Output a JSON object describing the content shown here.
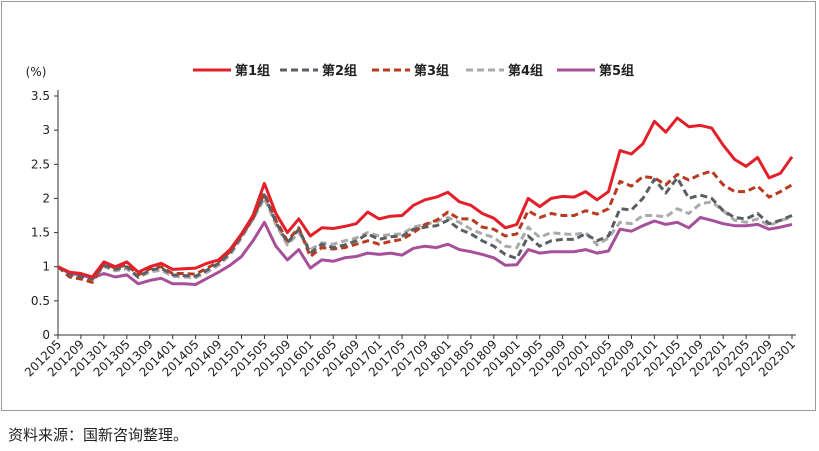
{
  "chart_data": {
    "type": "line",
    "ylabel": "(%)",
    "ylim": [
      0,
      3.5
    ],
    "yticks": [
      "0",
      "0.5",
      "1",
      "1.5",
      "2",
      "2.5",
      "3",
      "3.5"
    ],
    "x_tick_labels": [
      "201205",
      "201209",
      "201301",
      "201305",
      "201309",
      "201401",
      "201405",
      "201409",
      "201501",
      "201505",
      "201509",
      "201601",
      "201605",
      "201609",
      "201701",
      "201705",
      "201709",
      "201801",
      "201805",
      "201809",
      "201901",
      "201905",
      "201909",
      "202001",
      "202005",
      "202009",
      "202101",
      "202105",
      "202109",
      "202201",
      "202205",
      "202209",
      "202301"
    ],
    "series": [
      {
        "name": "第1组",
        "color": "#e3202a",
        "dash": "solid",
        "values": [
          1.0,
          0.92,
          0.9,
          0.85,
          1.07,
          1.0,
          1.07,
          0.92,
          1.0,
          1.05,
          0.96,
          0.97,
          0.98,
          1.05,
          1.1,
          1.25,
          1.48,
          1.75,
          2.22,
          1.78,
          1.5,
          1.7,
          1.45,
          1.57,
          1.56,
          1.59,
          1.63,
          1.8,
          1.7,
          1.74,
          1.75,
          1.9,
          1.98,
          2.02,
          2.09,
          1.95,
          1.9,
          1.78,
          1.71,
          1.57,
          1.62,
          2.0,
          1.88,
          2.0,
          2.03,
          2.02,
          2.1,
          1.98,
          2.1,
          2.7,
          2.65,
          2.8,
          3.13,
          2.97,
          3.18,
          3.05,
          3.07,
          3.03,
          2.78,
          2.57,
          2.47,
          2.6,
          2.3,
          2.37,
          2.61
        ]
      },
      {
        "name": "第2组",
        "color": "#5a5f66",
        "dash": "7,4",
        "values": [
          1.0,
          0.88,
          0.86,
          0.82,
          1.02,
          0.96,
          1.0,
          0.85,
          0.95,
          0.98,
          0.88,
          0.87,
          0.86,
          0.95,
          1.05,
          1.2,
          1.45,
          1.72,
          2.05,
          1.65,
          1.35,
          1.55,
          1.2,
          1.33,
          1.28,
          1.32,
          1.38,
          1.48,
          1.4,
          1.44,
          1.45,
          1.55,
          1.58,
          1.6,
          1.68,
          1.55,
          1.48,
          1.38,
          1.3,
          1.18,
          1.12,
          1.45,
          1.3,
          1.38,
          1.4,
          1.4,
          1.48,
          1.38,
          1.45,
          1.85,
          1.83,
          2.0,
          2.28,
          2.08,
          2.3,
          2.0,
          2.05,
          2.0,
          1.82,
          1.72,
          1.7,
          1.78,
          1.63,
          1.68,
          1.75
        ]
      },
      {
        "name": "第3组",
        "color": "#b93a1e",
        "dash": "7,4",
        "values": [
          1.0,
          0.85,
          0.82,
          0.77,
          1.05,
          0.98,
          1.03,
          0.88,
          0.97,
          1.0,
          0.9,
          0.9,
          0.89,
          0.98,
          1.07,
          1.22,
          1.46,
          1.7,
          2.08,
          1.68,
          1.38,
          1.57,
          1.15,
          1.28,
          1.26,
          1.28,
          1.33,
          1.38,
          1.33,
          1.37,
          1.4,
          1.5,
          1.62,
          1.68,
          1.8,
          1.7,
          1.7,
          1.58,
          1.55,
          1.45,
          1.48,
          1.82,
          1.72,
          1.78,
          1.75,
          1.75,
          1.82,
          1.77,
          1.85,
          2.25,
          2.18,
          2.32,
          2.3,
          2.2,
          2.35,
          2.27,
          2.35,
          2.4,
          2.2,
          2.1,
          2.1,
          2.18,
          2.02,
          2.1,
          2.2
        ]
      },
      {
        "name": "第4组",
        "color": "#ababab",
        "dash": "7,4",
        "values": [
          1.0,
          0.86,
          0.84,
          0.8,
          1.0,
          0.94,
          0.97,
          0.84,
          0.92,
          0.95,
          0.86,
          0.85,
          0.84,
          0.92,
          1.02,
          1.17,
          1.42,
          1.7,
          2.0,
          1.62,
          1.32,
          1.5,
          1.25,
          1.35,
          1.33,
          1.38,
          1.42,
          1.5,
          1.45,
          1.47,
          1.48,
          1.58,
          1.62,
          1.66,
          1.72,
          1.65,
          1.55,
          1.48,
          1.43,
          1.3,
          1.28,
          1.58,
          1.43,
          1.5,
          1.48,
          1.47,
          1.5,
          1.32,
          1.42,
          1.65,
          1.63,
          1.75,
          1.75,
          1.73,
          1.85,
          1.78,
          1.92,
          1.95,
          1.82,
          1.68,
          1.65,
          1.7,
          1.6,
          1.68,
          1.72
        ]
      },
      {
        "name": "第5组",
        "color": "#a7509a",
        "dash": "solid",
        "values": [
          1.0,
          0.9,
          0.88,
          0.83,
          0.9,
          0.85,
          0.88,
          0.75,
          0.8,
          0.83,
          0.75,
          0.75,
          0.74,
          0.83,
          0.92,
          1.02,
          1.15,
          1.38,
          1.65,
          1.3,
          1.1,
          1.25,
          0.98,
          1.1,
          1.08,
          1.13,
          1.15,
          1.2,
          1.18,
          1.2,
          1.17,
          1.27,
          1.3,
          1.28,
          1.33,
          1.25,
          1.22,
          1.18,
          1.13,
          1.02,
          1.03,
          1.25,
          1.2,
          1.22,
          1.22,
          1.22,
          1.25,
          1.2,
          1.23,
          1.55,
          1.52,
          1.6,
          1.67,
          1.62,
          1.65,
          1.57,
          1.72,
          1.68,
          1.63,
          1.6,
          1.6,
          1.62,
          1.55,
          1.58,
          1.62
        ]
      }
    ]
  },
  "source_text": "资料来源：国新咨询整理。"
}
